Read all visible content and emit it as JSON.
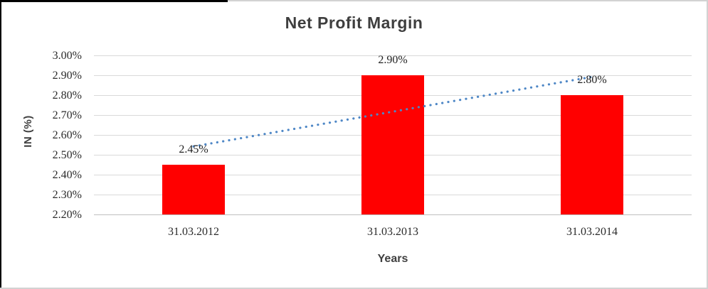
{
  "colors": {
    "bar": "#FF0000",
    "trendline": "#4E87C6",
    "gridline": "#D9D9D9",
    "axis_line": "#BFBFBF",
    "title_text": "#3E3E3E",
    "tick_text": "#2B2B2B",
    "frame_black": "#000000",
    "frame_gray": "#D2D2D2"
  },
  "chart_data": {
    "type": "bar",
    "title": "Net Profit Margin",
    "xlabel": "Years",
    "ylabel": "IN (%)",
    "categories": [
      "31.03.2012",
      "31.03.2013",
      "31.03.2014"
    ],
    "values": [
      2.45,
      2.9,
      2.8
    ],
    "data_labels": [
      "2.45%",
      "2.90%",
      "2.80%"
    ],
    "yticks": [
      "3.00%",
      "2.90%",
      "2.80%",
      "2.70%",
      "2.60%",
      "2.50%",
      "2.40%",
      "2.30%",
      "2.20%"
    ],
    "ylim": [
      2.2,
      3.0
    ],
    "grid": true,
    "legend": false,
    "trendline": {
      "type": "linear",
      "style": "dotted",
      "y_start": 2.542,
      "y_end": 2.892
    }
  }
}
